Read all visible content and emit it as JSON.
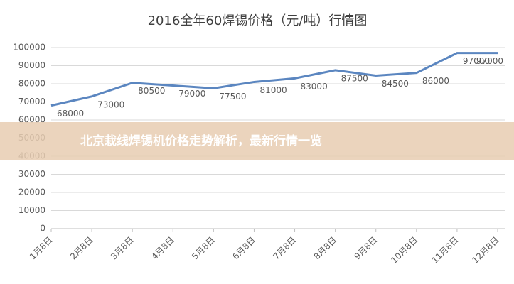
{
  "chart_data": {
    "type": "line",
    "title": "2016全年60焊锡价格（元/吨）行情图",
    "categories": [
      "1月8日",
      "2月8日",
      "3月8日",
      "4月8日",
      "5月8日",
      "6月8日",
      "7月8日",
      "8月8日",
      "9月8日",
      "10月8日",
      "11月8日",
      "12月8日"
    ],
    "values": [
      68000,
      73000,
      80500,
      79000,
      77500,
      81000,
      83000,
      87500,
      84500,
      86000,
      97000,
      97000
    ],
    "color": "#5b86c0",
    "ylim": [
      0,
      100000
    ],
    "yticks": [
      0,
      10000,
      20000,
      30000,
      40000,
      50000,
      60000,
      70000,
      80000,
      90000,
      100000
    ],
    "grid": true
  },
  "banner": {
    "text": "北京栽线焊锡机价格走势解析，最新行情一览"
  }
}
